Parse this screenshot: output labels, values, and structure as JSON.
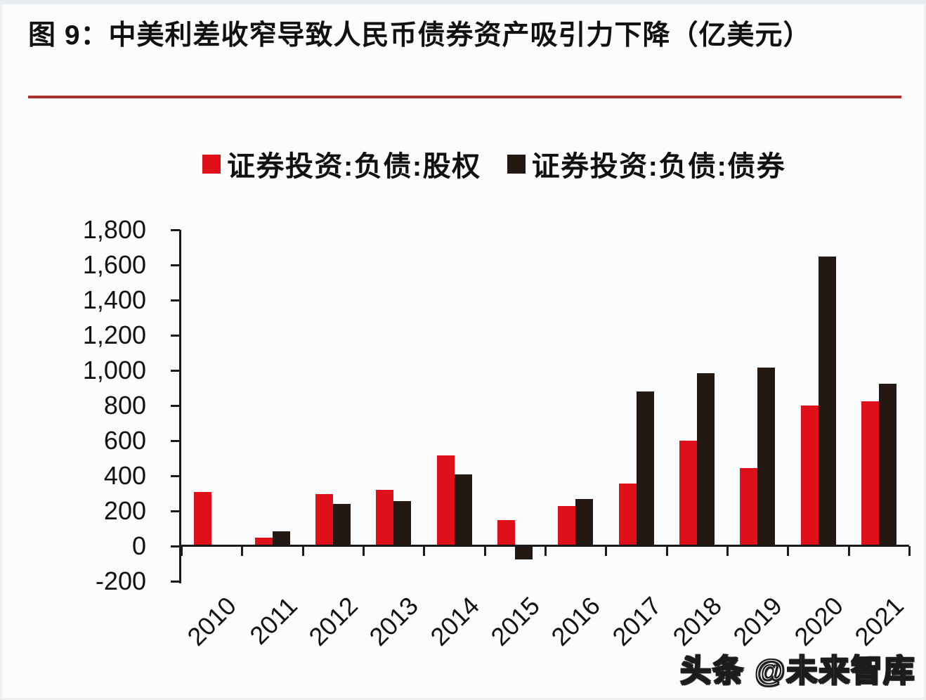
{
  "header": {
    "title": "图 9：中美利差收窄导致人民币债券资产吸引力下降（亿美元）"
  },
  "legend": {
    "items": [
      {
        "label": "证券投资:负债:股权",
        "color": "#df1019"
      },
      {
        "label": "证券投资:负债:债券",
        "color": "#241813"
      }
    ]
  },
  "watermark": {
    "text": "头条 @未来智库"
  },
  "colors": {
    "series_equity": "#df1019",
    "series_bond": "#241813",
    "title_rule": "#a93030",
    "axis": "#1a1a1a"
  },
  "chart_data": {
    "type": "bar",
    "title": "图 9：中美利差收窄导致人民币债券资产吸引力下降（亿美元）",
    "unit": "亿美元",
    "categories": [
      "2010",
      "2011",
      "2012",
      "2013",
      "2014",
      "2015",
      "2016",
      "2017",
      "2018",
      "2019",
      "2020",
      "2021"
    ],
    "series": [
      {
        "name": "证券投资:负债:股权",
        "color": "#df1019",
        "values": [
          310,
          50,
          295,
          320,
          515,
          148,
          230,
          357,
          600,
          445,
          800,
          825
        ]
      },
      {
        "name": "证券投资:负债:债券",
        "color": "#241813",
        "values": [
          0,
          85,
          240,
          255,
          410,
          -70,
          267,
          880,
          985,
          1015,
          1650,
          925
        ]
      }
    ],
    "ylim": [
      -200,
      1800
    ],
    "ytick_step": 200,
    "yticklabels": [
      "-200",
      "0",
      "200",
      "400",
      "600",
      "800",
      "1,000",
      "1,200",
      "1,400",
      "1,600",
      "1,800"
    ],
    "grid": false,
    "legend_position": "top",
    "xlabel": "",
    "ylabel": ""
  }
}
